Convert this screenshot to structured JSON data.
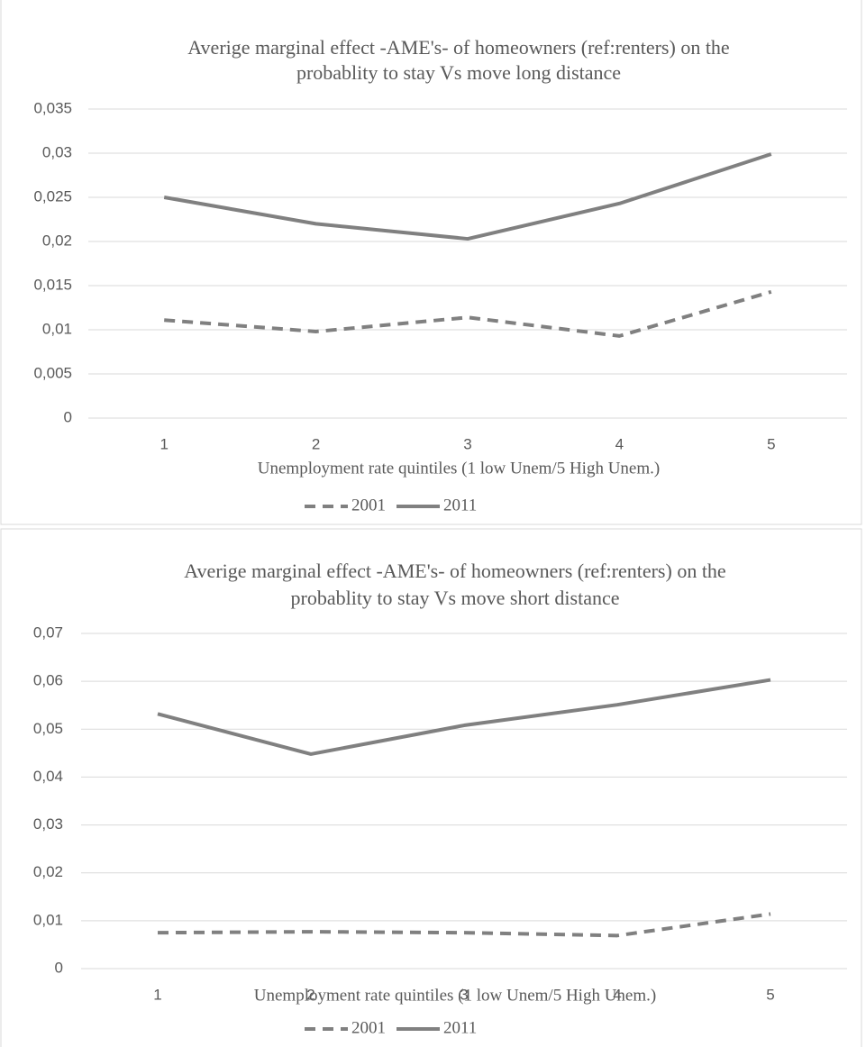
{
  "chart_data": [
    {
      "type": "line",
      "title": [
        "Averige marginal effect -AME's- of homeowners (ref:renters) on the",
        "probablity to stay Vs move long distance"
      ],
      "x_label": "Unemployment rate quintiles (1 low Unem/5 High Unem.)",
      "categories": [
        "1",
        "2",
        "3",
        "4",
        "5"
      ],
      "series": [
        {
          "name": "2001",
          "color": "#808080",
          "line_style": "dashed",
          "values": [
            0.0111,
            0.0098,
            0.0114,
            0.0093,
            0.0143
          ]
        },
        {
          "name": "2011",
          "color": "#808080",
          "line_style": "solid",
          "values": [
            0.025,
            0.022,
            0.0203,
            0.0243,
            0.0299
          ]
        }
      ],
      "ylim": [
        0,
        0.035
      ],
      "yticks": [
        0,
        {
          "value": 0.005,
          "label": "0,005"
        },
        {
          "value": 0.01,
          "label": "0,01"
        },
        {
          "value": 0.015,
          "label": "0,015"
        },
        {
          "value": 0.02,
          "label": "0,02"
        },
        {
          "value": 0.025,
          "label": "0,025"
        },
        {
          "value": 0.03,
          "label": "0,03"
        },
        {
          "value": 0.035,
          "label": "0,035"
        }
      ],
      "grid": true,
      "legend": "bottom"
    },
    {
      "type": "line",
      "title": [
        "Averige marginal effect -AME's- of homeowners (ref:renters) on the",
        "probablity to stay Vs move short distance"
      ],
      "x_label": "Unemployment rate quintiles (1 low Unem/5 High Unem.)",
      "categories": [
        "1",
        "2",
        "3",
        "4",
        "5"
      ],
      "series": [
        {
          "name": "2001",
          "color": "#808080",
          "line_style": "dashed",
          "values": [
            0.0075,
            0.0077,
            0.0075,
            0.0069,
            0.0114
          ]
        },
        {
          "name": "2011",
          "color": "#808080",
          "line_style": "solid",
          "values": [
            0.0532,
            0.0448,
            0.0508,
            0.0551,
            0.0603
          ]
        }
      ],
      "ylim": [
        0,
        0.07
      ],
      "yticks": [
        0,
        {
          "value": 0.01,
          "label": "0,01"
        },
        {
          "value": 0.02,
          "label": "0,02"
        },
        {
          "value": 0.03,
          "label": "0,03"
        },
        {
          "value": 0.04,
          "label": "0,04"
        },
        {
          "value": 0.05,
          "label": "0,05"
        },
        {
          "value": 0.06,
          "label": "0,06"
        },
        {
          "value": 0.07,
          "label": "0,07"
        }
      ],
      "grid": true,
      "legend": "bottom"
    }
  ]
}
